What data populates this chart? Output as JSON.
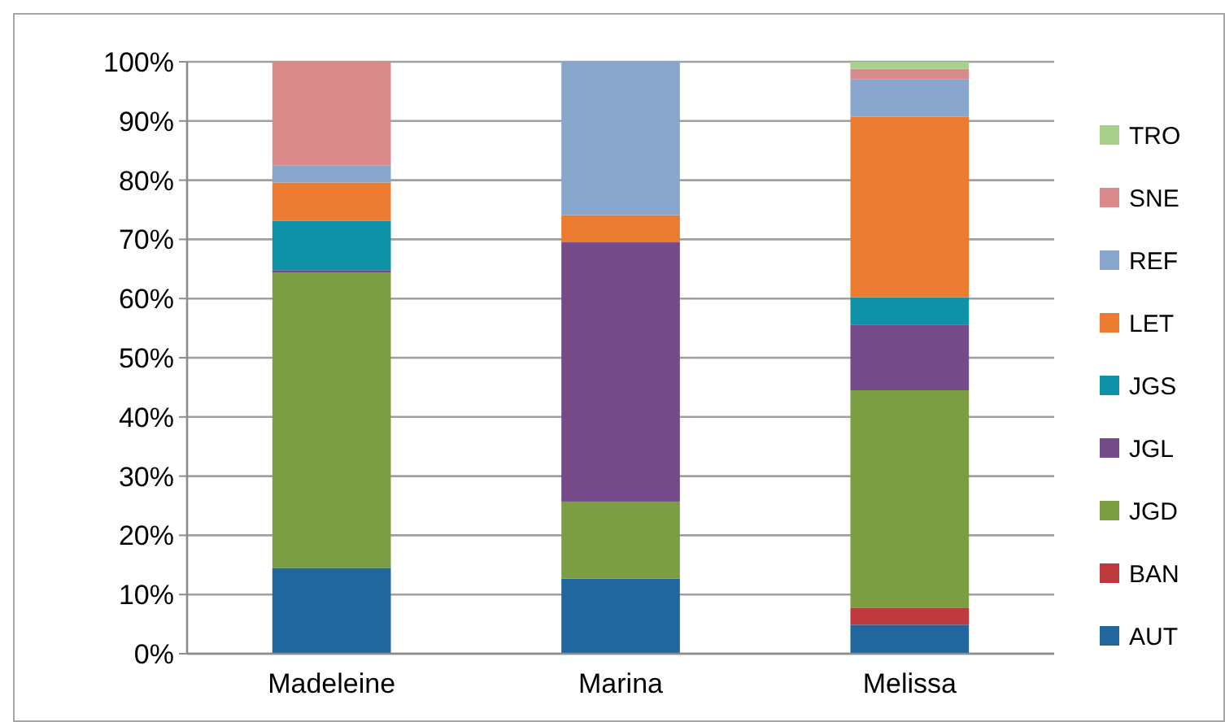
{
  "chart_data": {
    "type": "bar",
    "stacked": true,
    "categories": [
      "Madeleine",
      "Marina",
      "Melissa"
    ],
    "series": [
      {
        "name": "AUT",
        "color": "#22669e",
        "values": [
          14.5,
          12.7,
          4.9
        ]
      },
      {
        "name": "BAN",
        "color": "#be3a3f",
        "values": [
          0,
          0,
          2.8
        ]
      },
      {
        "name": "JGD",
        "color": "#7a9e41",
        "values": [
          49.9,
          13.0,
          36.8
        ]
      },
      {
        "name": "JGL",
        "color": "#744b88",
        "values": [
          0.4,
          43.8,
          11.1
        ]
      },
      {
        "name": "JGS",
        "color": "#0f92a8",
        "values": [
          8.3,
          0,
          4.6
        ]
      },
      {
        "name": "LET",
        "color": "#ea7b31",
        "values": [
          6.5,
          4.6,
          30.5
        ]
      },
      {
        "name": "REF",
        "color": "#88a5cb",
        "values": [
          2.9,
          25.9,
          6.3
        ]
      },
      {
        "name": "SNE",
        "color": "#db8a8c",
        "values": [
          17.5,
          0,
          1.8
        ]
      },
      {
        "name": "TRO",
        "color": "#a8cf8c",
        "values": [
          0,
          0,
          1.2
        ]
      }
    ],
    "ylim": [
      0,
      100
    ],
    "yticks": [
      {
        "value": 0,
        "label": "0%"
      },
      {
        "value": 10,
        "label": "10%"
      },
      {
        "value": 20,
        "label": "20%"
      },
      {
        "value": 30,
        "label": "30%"
      },
      {
        "value": 40,
        "label": "40%"
      },
      {
        "value": 50,
        "label": "50%"
      },
      {
        "value": 60,
        "label": "60%"
      },
      {
        "value": 70,
        "label": "70%"
      },
      {
        "value": 80,
        "label": "80%"
      },
      {
        "value": 90,
        "label": "90%"
      },
      {
        "value": 100,
        "label": "100%"
      }
    ],
    "grid": "y",
    "legend": "right"
  }
}
